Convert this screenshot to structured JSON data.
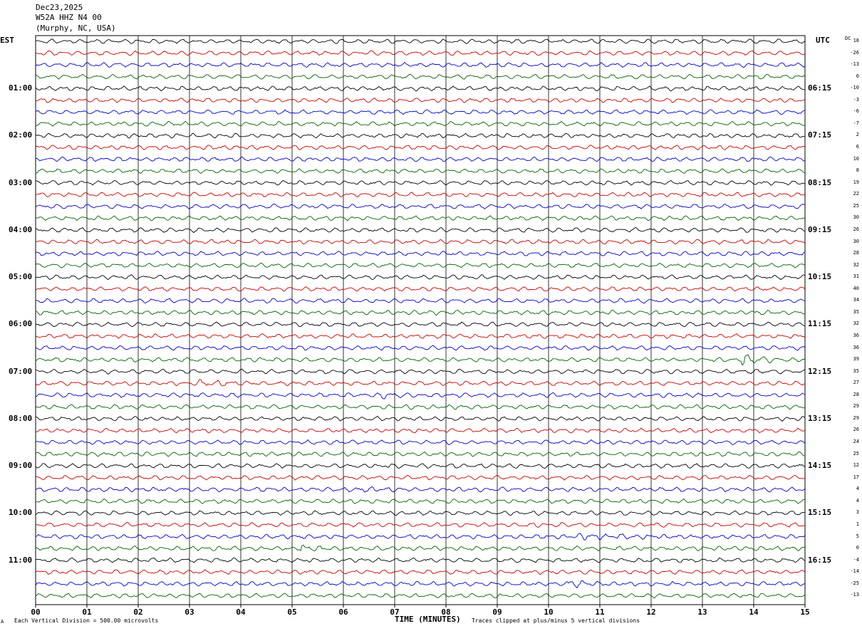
{
  "header": {
    "date": "Dec23,2025",
    "station": "W52A HHZ N4 00",
    "location": "(Murphy, NC, USA)"
  },
  "tz_left": "EST",
  "tz_right": "UTC",
  "dc_label": "DC",
  "footer": {
    "corner": "A",
    "left": "Each Vertical Division =  500.00 microvolts",
    "right": "Traces clipped at plus/minus 5 vertical divisions"
  },
  "colors": {
    "trace_cycle": [
      "#000000",
      "#cc0000",
      "#0000cc",
      "#006400"
    ],
    "grid": "#000000",
    "background": "#ffffff"
  },
  "chart_data": {
    "type": "line",
    "xlabel": "TIME (MINUTES)",
    "xlim": [
      0,
      15
    ],
    "x_ticks": [
      "00",
      "01",
      "02",
      "03",
      "04",
      "05",
      "06",
      "07",
      "08",
      "09",
      "10",
      "11",
      "12",
      "13",
      "14",
      "15"
    ],
    "rows": 48,
    "traces_per_hour": 4,
    "hour_labels_left": [
      "01:00",
      "02:00",
      "03:00",
      "04:00",
      "05:00",
      "06:00",
      "07:00",
      "08:00",
      "09:00",
      "10:00",
      "11:00"
    ],
    "hour_labels_right": [
      "06:15",
      "07:15",
      "08:15",
      "09:15",
      "10:15",
      "11:15",
      "12:15",
      "13:15",
      "14:15",
      "15:15",
      "16:15"
    ],
    "dc_offsets": [
      18,
      -26,
      -13,
      6,
      -10,
      -3,
      -6,
      -7,
      2,
      6,
      10,
      8,
      19,
      22,
      25,
      30,
      26,
      30,
      28,
      32,
      31,
      40,
      34,
      35,
      32,
      36,
      36,
      39,
      35,
      27,
      28,
      29,
      29,
      26,
      24,
      25,
      12,
      17,
      4,
      4,
      3,
      1,
      5,
      0,
      -4,
      -14,
      -25,
      -13
    ],
    "events": [
      {
        "row": 27,
        "minute": 13.8,
        "width": 0.6,
        "amp": 3.2
      },
      {
        "row": 43,
        "minute": 5.2,
        "width": 0.4,
        "amp": 1.5
      },
      {
        "row": 42,
        "minute": 10.6,
        "width": 1.6,
        "amp": 1.1
      },
      {
        "row": 46,
        "minute": 10.4,
        "width": 0.8,
        "amp": 1.4
      },
      {
        "row": 30,
        "minute": 6.8,
        "width": 0.8,
        "amp": 0.9
      },
      {
        "row": 29,
        "minute": 3.2,
        "width": 1.0,
        "amp": 0.8
      },
      {
        "row": 38,
        "minute": 6.3,
        "width": 0.6,
        "amp": 0.8
      }
    ]
  }
}
